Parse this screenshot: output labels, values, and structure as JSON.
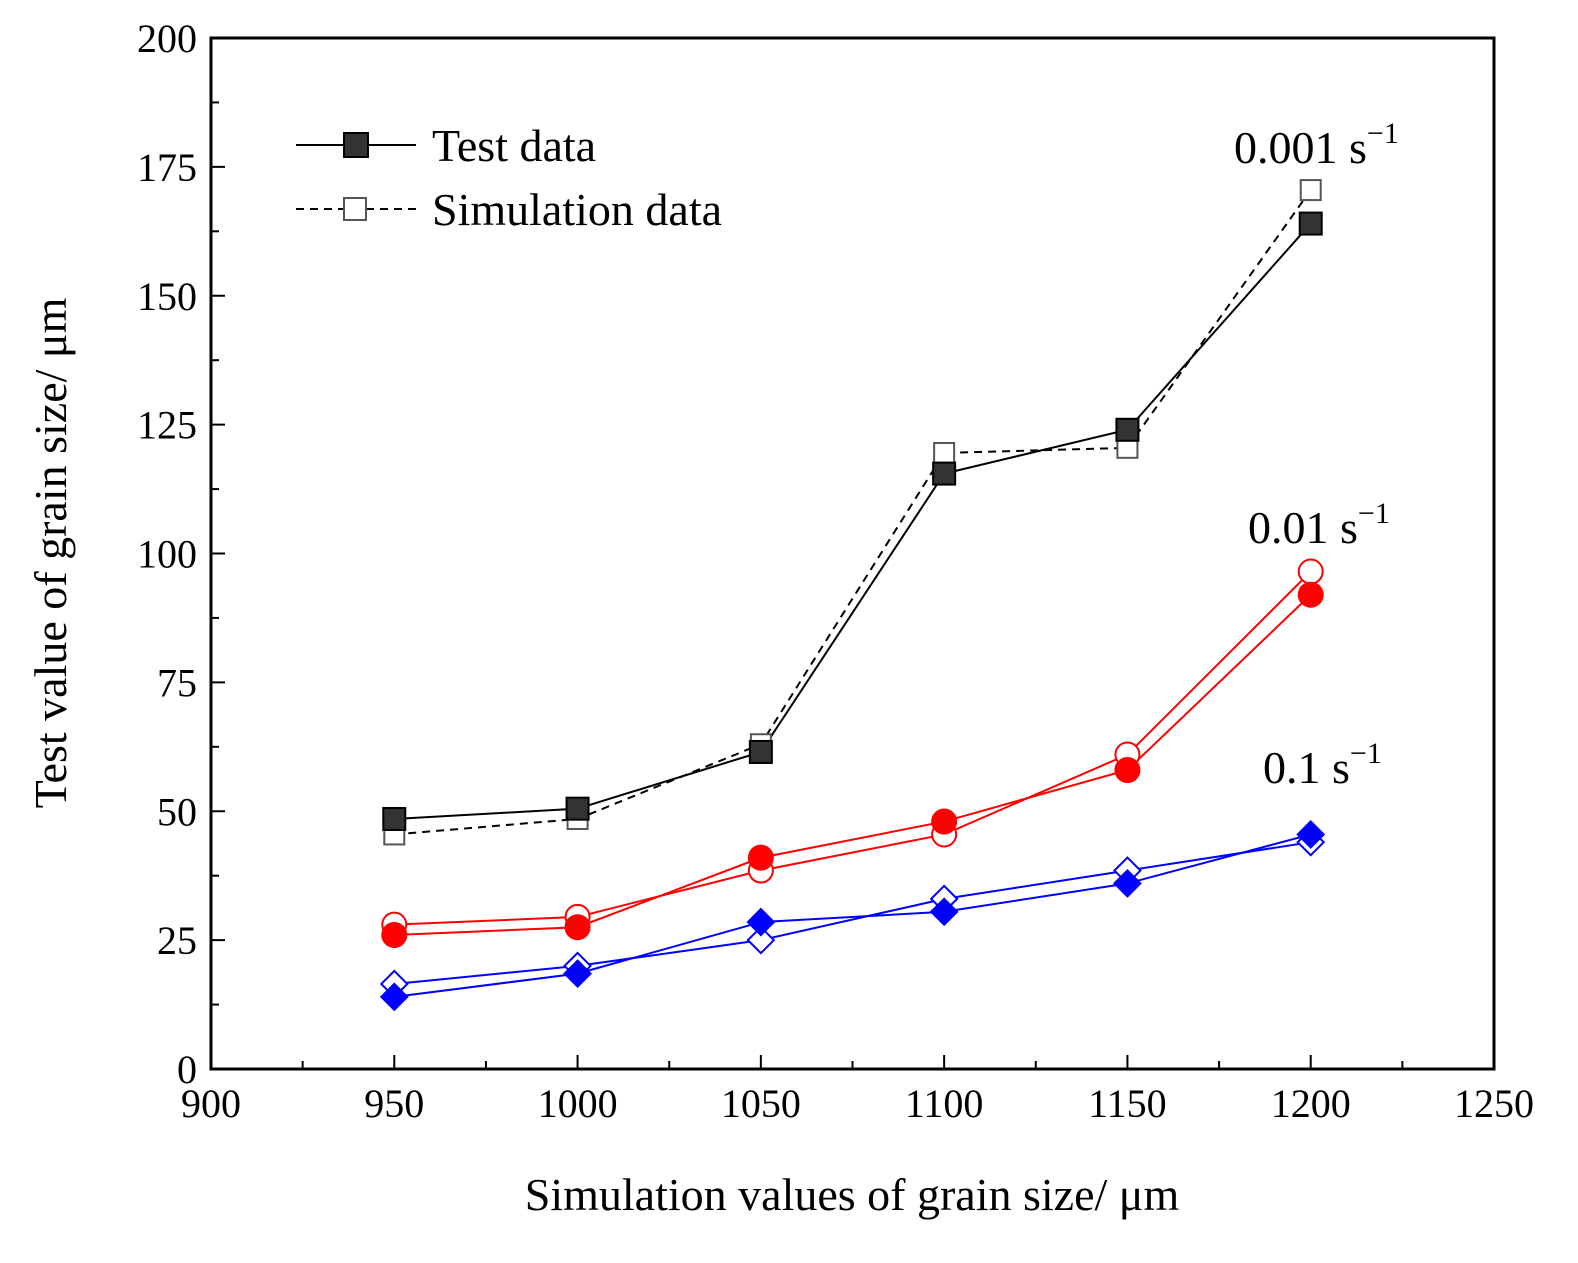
{
  "chart_data": {
    "type": "line",
    "title": "",
    "xlabel": "Simulation values of grain size/ μm",
    "ylabel": "Test value of grain size/ μm",
    "xlim": [
      900,
      1250
    ],
    "ylim": [
      0,
      200
    ],
    "xticks": [
      900,
      950,
      1000,
      1050,
      1100,
      1150,
      1200,
      1250
    ],
    "yticks": [
      0,
      25,
      50,
      75,
      100,
      125,
      150,
      175,
      200
    ],
    "x": [
      950,
      1000,
      1050,
      1100,
      1150,
      1200
    ],
    "legend": {
      "placement": "top-left",
      "entries": [
        {
          "label": "Test data",
          "style": "solid",
          "marker": "filled-square"
        },
        {
          "label": "Simulation data",
          "style": "dashed",
          "marker": "open-square"
        }
      ]
    },
    "groups": [
      {
        "rate": "0.001 s",
        "exponent": "−1",
        "color": "#000000",
        "fill": "#333333",
        "marker": "square",
        "test": [
          48.5,
          50.5,
          61.5,
          115.5,
          124,
          164
        ],
        "simulation": [
          45.5,
          48.5,
          63,
          119.5,
          120.5,
          170.5
        ]
      },
      {
        "rate": "0.01 s",
        "exponent": "−1",
        "color": "#ff0000",
        "fill": "#ff0000",
        "marker": "circle",
        "test": [
          26,
          27.5,
          41,
          48,
          58,
          92
        ],
        "simulation": [
          28,
          29.5,
          38.5,
          45.5,
          61,
          96.5
        ]
      },
      {
        "rate": "0.1 s",
        "exponent": "−1",
        "color": "#0000ff",
        "fill": "#0000ff",
        "marker": "diamond",
        "test": [
          14,
          18.5,
          28.5,
          30.5,
          36,
          45.5
        ],
        "simulation": [
          16.5,
          20,
          25,
          33,
          38.5,
          44
        ]
      }
    ]
  }
}
